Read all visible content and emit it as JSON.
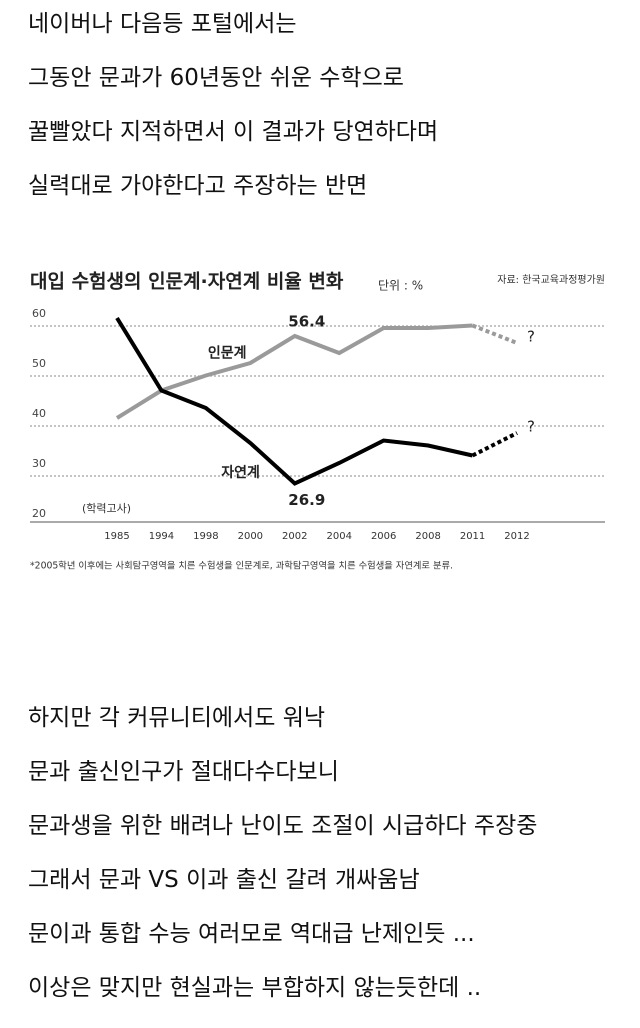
{
  "text_top": [
    "네이버나 다음등 포털에서는",
    "그동안 문과가 60년동안 쉬운 수학으로",
    "꿀빨았다 지적하면서 이 결과가 당연하다며",
    "실력대로 가야한다고 주장하는 반면"
  ],
  "chart_data": {
    "type": "line",
    "title": "대입 수험생의 인문계·자연계 비율 변화",
    "unit": "단위 : %",
    "source": "자료: 한국교육과정평가원",
    "categories": [
      "1985",
      "1994",
      "1998",
      "2000",
      "2002",
      "2004",
      "2006",
      "2008",
      "2011",
      "2012"
    ],
    "series": [
      {
        "name": "인문계",
        "color": "#9a9a9a",
        "values": [
          40,
          45.5,
          48.5,
          51,
          56.4,
          53,
          58,
          58,
          58.5,
          55
        ]
      },
      {
        "name": "자연계",
        "color": "#000000",
        "values": [
          60,
          45.5,
          42,
          35,
          26.9,
          31,
          35.5,
          34.5,
          32.5,
          37
        ]
      }
    ],
    "projection_start": "2011",
    "projection_mark": "?",
    "data_labels": [
      {
        "series": 0,
        "category": "2002"
      },
      {
        "series": 1,
        "category": "2002"
      }
    ],
    "annotation": "(학력고사)",
    "footnote": "*2005학년 이후에는 사회탐구영역을 치른 수험생을 인문계로, 과학탐구영역을 치른 수험생을 자연계로 분류.",
    "ylim": [
      18,
      62
    ],
    "yticks": [
      20,
      30,
      40,
      50,
      60
    ],
    "grid": true
  },
  "text_bottom": [
    "하지만 각 커뮤니티에서도 워낙",
    "문과 출신인구가 절대다수다보니",
    "문과생을 위한 배려나 난이도 조절이 시급하다 주장중",
    "그래서 문과 VS 이과 출신 갈려 개싸움남",
    "문이과 통합 수능 여러모로 역대급 난제인듯 ...",
    "이상은 맞지만 현실과는 부합하지 않는듯한데 .."
  ]
}
